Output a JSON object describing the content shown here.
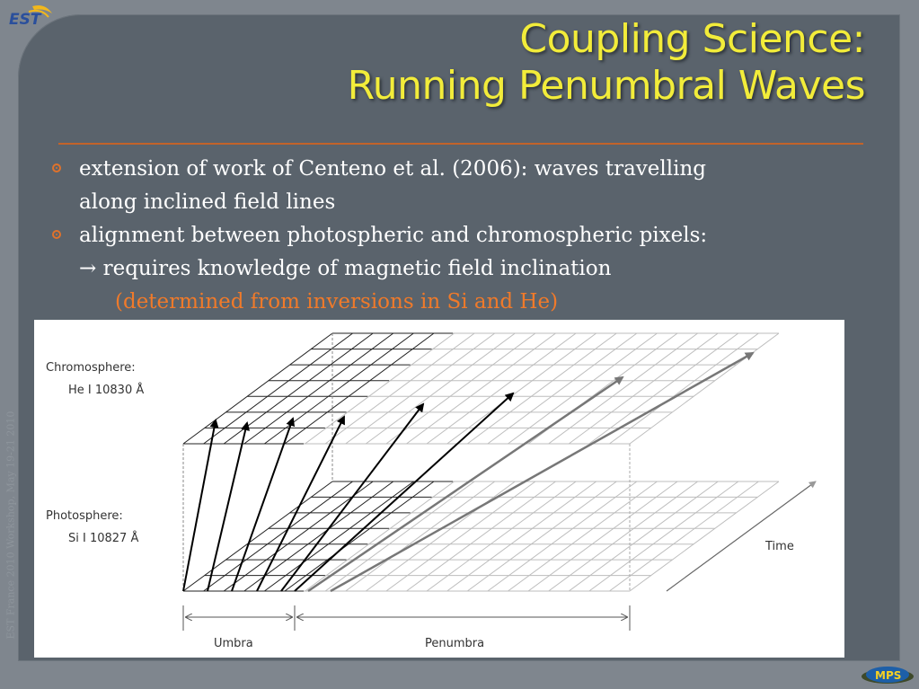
{
  "logo": {
    "text": "EST"
  },
  "title": {
    "line1": "Coupling Science:",
    "line2": "Running Penumbral Waves"
  },
  "bullets": [
    {
      "line1": "extension of work of Centeno et al. (2006): waves travelling",
      "line2": "along inclined field lines"
    },
    {
      "line1": "alignment between photospheric and chromospheric pixels:",
      "line2": "→ requires knowledge of magnetic field inclination",
      "line3": "(determined from inversions in Si and He)"
    }
  ],
  "sidebar_text": "EST France 2010 Workshop, May 19-21 2010",
  "footer_logo": {
    "text": "MPS"
  },
  "diagram": {
    "chromosphere_label": "Chromosphere:",
    "chromosphere_line": "He I 10830 Å",
    "photosphere_label": "Photosphere:",
    "photosphere_line": "Si I 10827 Å",
    "time_label": "Time",
    "umbra_label": "Umbra",
    "penumbra_label": "Penumbra"
  },
  "colors": {
    "title": "#f2ec3a",
    "accent": "#e0722b",
    "background": "#5a636c"
  }
}
